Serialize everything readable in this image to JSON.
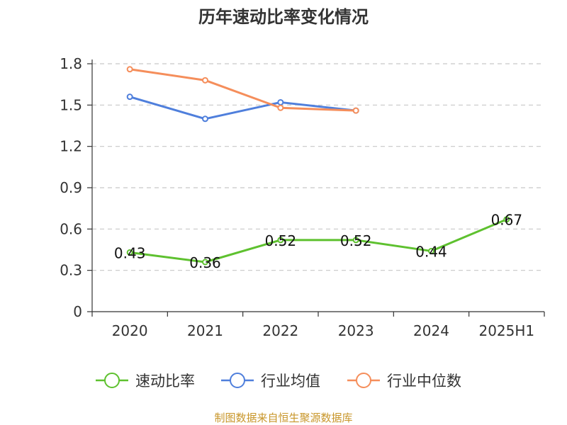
{
  "chart_data": {
    "type": "line",
    "title": "历年速动比率变化情况",
    "categories": [
      "2020",
      "2021",
      "2022",
      "2023",
      "2024",
      "2025H1"
    ],
    "y_ticks": [
      "0",
      "0.3",
      "0.6",
      "0.9",
      "1.2",
      "1.5",
      "1.8"
    ],
    "ylim": [
      0,
      1.8
    ],
    "grid": true,
    "legend_position": "bottom",
    "series": [
      {
        "name": "速动比率",
        "color": "#5ec12f",
        "values": [
          0.43,
          0.36,
          0.52,
          0.52,
          0.44,
          0.67
        ],
        "labels": [
          "0.43",
          "0.36",
          "0.52",
          "0.52",
          "0.44",
          "0.67"
        ]
      },
      {
        "name": "行业均值",
        "color": "#4f7fdc",
        "values": [
          1.56,
          1.4,
          1.52,
          1.46,
          null,
          null
        ]
      },
      {
        "name": "行业中位数",
        "color": "#f58e5b",
        "values": [
          1.76,
          1.68,
          1.48,
          1.46,
          null,
          null
        ]
      }
    ]
  },
  "source": "制图数据来自恒生聚源数据库"
}
